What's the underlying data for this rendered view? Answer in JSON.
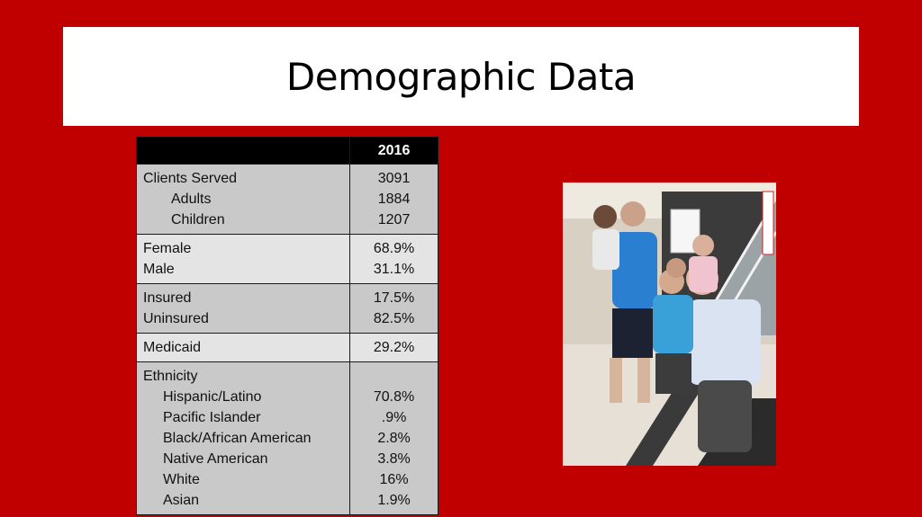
{
  "slide": {
    "title": "Demographic Data"
  },
  "table": {
    "year_header": "2016",
    "groups": [
      {
        "shade": "gray",
        "rows": [
          {
            "label": "Clients Served",
            "value": "3091"
          },
          {
            "label": "Adults",
            "value": "1884"
          },
          {
            "label": "Children",
            "value": "1207"
          }
        ]
      },
      {
        "shade": "light",
        "rows": [
          {
            "label": "Female",
            "value": "68.9%"
          },
          {
            "label": "Male",
            "value": "31.1%"
          }
        ]
      },
      {
        "shade": "gray",
        "rows": [
          {
            "label": "Insured",
            "value": "17.5%"
          },
          {
            "label": "Uninsured",
            "value": "82.5%"
          }
        ]
      },
      {
        "shade": "light",
        "rows": [
          {
            "label": "Medicaid",
            "value": "29.2%"
          }
        ]
      },
      {
        "shade": "gray",
        "rows": [
          {
            "label": "Ethnicity",
            "value": ""
          },
          {
            "label": "Hispanic/Latino",
            "value": "70.8%"
          },
          {
            "label": "Pacific Islander",
            "value": ".9%"
          },
          {
            "label": "Black/African American",
            "value": "2.8%"
          },
          {
            "label": "Native American",
            "value": "3.8%"
          },
          {
            "label": "White",
            "value": "16%"
          },
          {
            "label": "Asian",
            "value": "1.9%"
          }
        ]
      }
    ]
  },
  "colors": {
    "background": "#c00000",
    "header": "#000000",
    "row_gray": "#c9c9c9",
    "row_light": "#e4e4e4"
  }
}
